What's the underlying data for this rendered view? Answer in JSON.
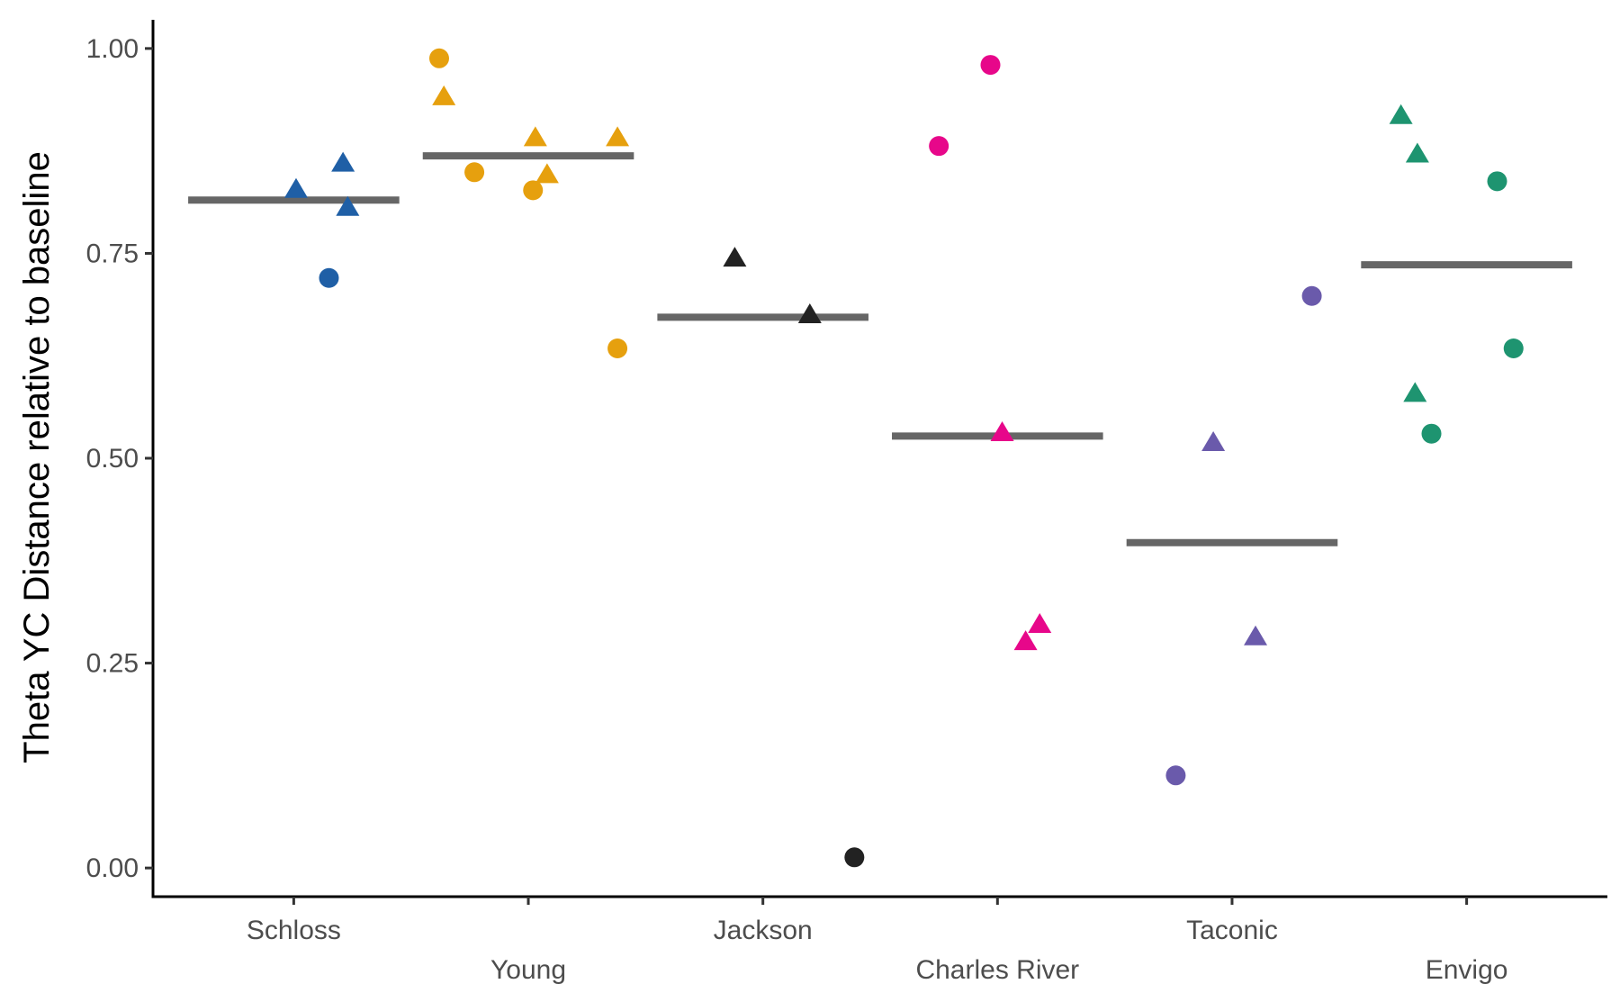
{
  "chart_data": {
    "type": "scatter",
    "title": "",
    "xlabel": "",
    "ylabel": "Theta YC Distance relative to baseline",
    "ylim": [
      -0.035,
      1.035
    ],
    "y_ticks": [
      "0.00",
      "0.25",
      "0.50",
      "0.75",
      "1.00"
    ],
    "y_tick_values": [
      0,
      0.25,
      0.5,
      0.75,
      1.0
    ],
    "categories": [
      "Schloss",
      "Young",
      "Jackson",
      "Charles River",
      "Taconic",
      "Envigo"
    ],
    "grid": false,
    "legend": "none",
    "colors": {
      "Schloss": "#1f5fa6",
      "Young": "#e6a00e",
      "Jackson": "#222222",
      "Charles River": "#e7078a",
      "Taconic": "#6a5aab",
      "Envigo": "#1e9470",
      "median_bar": "#666666"
    },
    "medians": [
      0.815,
      0.869,
      0.672,
      0.527,
      0.397,
      0.736
    ],
    "series": [
      {
        "category": "Schloss",
        "points": [
          {
            "dx": 0.01,
            "y": 0.827,
            "shape": "triangle"
          },
          {
            "dx": 0.21,
            "y": 0.859,
            "shape": "triangle"
          },
          {
            "dx": 0.23,
            "y": 0.805,
            "shape": "triangle"
          },
          {
            "dx": 0.15,
            "y": 0.72,
            "shape": "circle"
          }
        ]
      },
      {
        "category": "Young",
        "points": [
          {
            "dx": -0.38,
            "y": 0.988,
            "shape": "circle"
          },
          {
            "dx": -0.36,
            "y": 0.94,
            "shape": "triangle"
          },
          {
            "dx": -0.23,
            "y": 0.849,
            "shape": "circle"
          },
          {
            "dx": 0.03,
            "y": 0.89,
            "shape": "triangle"
          },
          {
            "dx": 0.08,
            "y": 0.845,
            "shape": "triangle"
          },
          {
            "dx": 0.02,
            "y": 0.827,
            "shape": "circle"
          },
          {
            "dx": 0.38,
            "y": 0.89,
            "shape": "triangle"
          },
          {
            "dx": 0.38,
            "y": 0.634,
            "shape": "circle"
          }
        ]
      },
      {
        "category": "Jackson",
        "points": [
          {
            "dx": -0.12,
            "y": 0.743,
            "shape": "triangle"
          },
          {
            "dx": 0.2,
            "y": 0.674,
            "shape": "triangle"
          },
          {
            "dx": 0.39,
            "y": 0.013,
            "shape": "circle"
          }
        ]
      },
      {
        "category": "Charles River",
        "points": [
          {
            "dx": -0.25,
            "y": 0.881,
            "shape": "circle"
          },
          {
            "dx": -0.03,
            "y": 0.98,
            "shape": "circle"
          },
          {
            "dx": 0.02,
            "y": 0.53,
            "shape": "triangle"
          },
          {
            "dx": 0.12,
            "y": 0.275,
            "shape": "triangle"
          },
          {
            "dx": 0.18,
            "y": 0.296,
            "shape": "triangle"
          }
        ]
      },
      {
        "category": "Taconic",
        "points": [
          {
            "dx": -0.08,
            "y": 0.518,
            "shape": "triangle"
          },
          {
            "dx": 0.1,
            "y": 0.281,
            "shape": "triangle"
          },
          {
            "dx": -0.24,
            "y": 0.113,
            "shape": "circle"
          },
          {
            "dx": 0.34,
            "y": 0.698,
            "shape": "circle"
          }
        ]
      },
      {
        "category": "Envigo",
        "points": [
          {
            "dx": -0.28,
            "y": 0.917,
            "shape": "triangle"
          },
          {
            "dx": -0.21,
            "y": 0.87,
            "shape": "triangle"
          },
          {
            "dx": 0.13,
            "y": 0.838,
            "shape": "circle"
          },
          {
            "dx": -0.22,
            "y": 0.578,
            "shape": "triangle"
          },
          {
            "dx": 0.2,
            "y": 0.634,
            "shape": "circle"
          },
          {
            "dx": -0.15,
            "y": 0.53,
            "shape": "circle"
          }
        ]
      }
    ]
  }
}
